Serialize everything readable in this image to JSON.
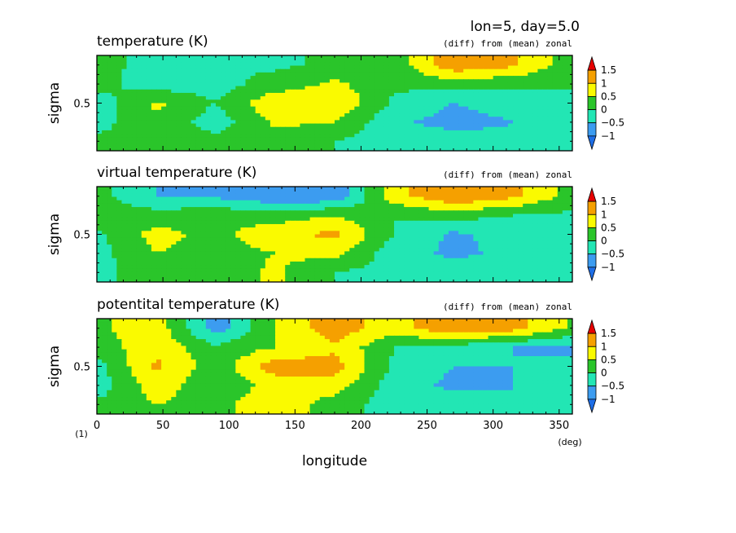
{
  "figure": {
    "header": "lon=5, day=5.0",
    "x_axis_label": "longitude",
    "x_unit": "(deg)",
    "y_axis_label": "sigma",
    "corner_label": "(1)",
    "x_ticks": [
      0,
      50,
      100,
      150,
      200,
      250,
      300,
      350
    ],
    "x_tick_labels": [
      "0",
      "50",
      "100",
      "150",
      "200",
      "250",
      "300",
      "350"
    ],
    "y_ticks": [
      0.5
    ],
    "y_tick_labels": [
      "0.5"
    ]
  },
  "colorbar": {
    "levels": [
      -1,
      -0.5,
      0,
      0.5,
      1,
      1.5
    ],
    "level_labels": [
      "−1",
      "−0.5",
      "0",
      "0.5",
      "1",
      "1.5"
    ],
    "colors": [
      "#1e6ee6",
      "#3c9cf0",
      "#22e6b4",
      "#2ac52a",
      "#fafa00",
      "#f5a000",
      "#e60000"
    ]
  },
  "chart_data": [
    {
      "type": "heatmap",
      "title": "temperature (K)",
      "subtitle": "(diff) from (mean) zonal",
      "xlabel": "longitude",
      "ylabel": "sigma",
      "xlim": [
        0,
        360
      ],
      "ylim": [
        1,
        0
      ],
      "value_range": [
        -1.5,
        2
      ],
      "x": [
        0,
        45,
        90,
        135,
        180,
        225,
        270,
        315,
        360
      ],
      "y": [
        0.9,
        0.7,
        0.5,
        0.3,
        0.1
      ],
      "z": [
        [
          0.1,
          -0.1,
          0.0,
          -0.1,
          0.1,
          0.2,
          1.4,
          1.1,
          0.2
        ],
        [
          0.2,
          -0.3,
          -0.2,
          0.2,
          0.6,
          0.1,
          0.2,
          0.1,
          0.0
        ],
        [
          -0.3,
          0.6,
          0.0,
          0.9,
          1.0,
          -0.1,
          -0.5,
          -0.3,
          0.0
        ],
        [
          -0.2,
          0.4,
          -0.3,
          0.6,
          0.5,
          -0.4,
          -0.7,
          -0.5,
          -0.4
        ],
        [
          0.1,
          0.3,
          0.2,
          0.3,
          0.0,
          -0.3,
          -0.2,
          -0.4,
          -0.4
        ]
      ]
    },
    {
      "type": "heatmap",
      "title": "virtual temperature (K)",
      "subtitle": "(diff) from (mean) zonal",
      "xlabel": "longitude",
      "ylabel": "sigma",
      "xlim": [
        0,
        360
      ],
      "ylim": [
        1,
        0
      ],
      "value_range": [
        -1.5,
        2
      ],
      "x": [
        0,
        45,
        90,
        135,
        180,
        225,
        270,
        315,
        360
      ],
      "y": [
        0.9,
        0.7,
        0.5,
        0.3,
        0.1
      ],
      "z": [
        [
          0.2,
          -0.5,
          -0.6,
          -0.9,
          -0.9,
          0.8,
          1.5,
          1.1,
          0.3
        ],
        [
          0.3,
          0.2,
          0.4,
          0.2,
          0.5,
          0.0,
          0.2,
          0.0,
          -0.1
        ],
        [
          -0.1,
          0.7,
          0.3,
          0.9,
          1.1,
          0.0,
          -0.6,
          -0.3,
          -0.1
        ],
        [
          -0.2,
          0.5,
          0.3,
          0.5,
          0.7,
          -0.3,
          -0.6,
          -0.4,
          -0.4
        ],
        [
          -0.1,
          0.2,
          0.2,
          0.6,
          0.0,
          -0.2,
          -0.2,
          -0.3,
          -0.4
        ]
      ]
    },
    {
      "type": "heatmap",
      "title": "potentital temperature (K)",
      "subtitle": "(diff) from (mean) zonal",
      "xlabel": "longitude",
      "ylabel": "sigma",
      "xlim": [
        0,
        360
      ],
      "ylim": [
        1,
        0
      ],
      "value_range": [
        -1.5,
        2
      ],
      "x": [
        0,
        45,
        90,
        135,
        180,
        225,
        270,
        315,
        360
      ],
      "y": [
        0.9,
        0.7,
        0.5,
        0.3,
        0.1
      ],
      "z": [
        [
          0.4,
          0.8,
          -0.8,
          0.5,
          1.3,
          0.7,
          1.5,
          1.2,
          0.4
        ],
        [
          0.2,
          0.9,
          0.1,
          0.5,
          0.9,
          0.0,
          -0.2,
          -0.5,
          -0.6
        ],
        [
          -0.2,
          1.1,
          0.2,
          1.3,
          1.2,
          -0.1,
          -0.5,
          -0.5,
          -0.4
        ],
        [
          -0.3,
          0.8,
          0.1,
          0.7,
          0.8,
          -0.3,
          -0.6,
          -0.5,
          -0.3
        ],
        [
          0.1,
          0.5,
          0.3,
          0.9,
          0.2,
          -0.2,
          -0.3,
          -0.5,
          -0.4
        ]
      ]
    }
  ]
}
